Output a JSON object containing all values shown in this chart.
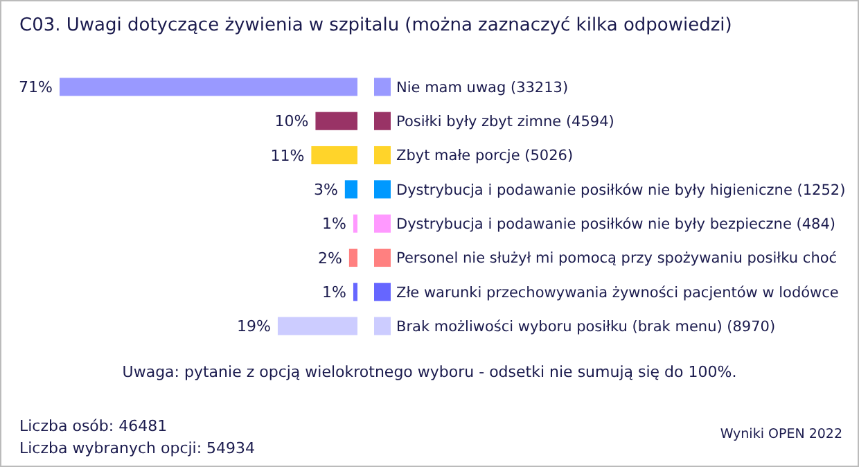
{
  "chart_data": {
    "type": "bar",
    "orientation": "horizontal",
    "title": "C03. Uwagi dotyczące żywienia w szpitalu (można zaznaczyć kilka odpowiedzi)",
    "categories": [
      "Nie mam uwag (33213)",
      "Posiłki były zbyt zimne (4594)",
      "Zbyt małe porcje (5026)",
      "Dystrybucja i podawanie posiłków nie były higieniczne (1252)",
      "Dystrybucja i podawanie posiłków nie były bezpieczne (484)",
      "Personel nie służył mi pomocą przy spożywaniu posiłku choć",
      "Złe warunki przechowywania żywności pacjentów w lodówce",
      "Brak możliwości wyboru posiłku (brak menu) (8970)"
    ],
    "values": [
      71,
      10,
      11,
      3,
      1,
      2,
      1,
      19
    ],
    "value_labels": [
      "71%",
      "10%",
      "11%",
      "3%",
      "1%",
      "2%",
      "1%",
      "19%"
    ],
    "colors": [
      "#9999ff",
      "#993366",
      "#ffd42a",
      "#0099ff",
      "#ff99ff",
      "#ff8080",
      "#6666ff",
      "#ccccff"
    ],
    "xlim": [
      71,
      0
    ],
    "annotations": [
      "Uwaga: pytanie z opcją wielokrotnego wyboru - odsetki nie sumują się do 100%.",
      "Liczba osób: 46481",
      "Liczba wybranych opcji: 54934",
      "Wyniki OPEN 2022"
    ]
  }
}
